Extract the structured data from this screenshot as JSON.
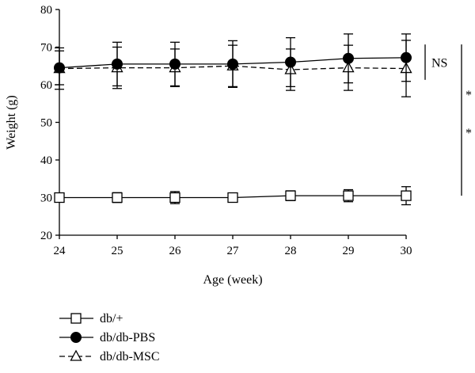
{
  "chart_data": {
    "type": "line",
    "title": "",
    "xlabel": "Age (week)",
    "ylabel": "Weight (g)",
    "x": [
      24,
      25,
      26,
      27,
      28,
      29,
      30
    ],
    "xlim": [
      24,
      30
    ],
    "ylim": [
      20,
      80
    ],
    "xticks": [
      "24",
      "25",
      "26",
      "27",
      "28",
      "29",
      "30"
    ],
    "yticks": [
      "20",
      "30",
      "40",
      "50",
      "60",
      "70",
      "80"
    ],
    "grid": false,
    "legend_position": "bottom-left",
    "series": [
      {
        "name": "db/+",
        "marker": "open-square",
        "line": "solid",
        "values": [
          30.0,
          30.0,
          30.0,
          30.0,
          30.5,
          30.5,
          30.5
        ],
        "errors": [
          0.8,
          1.3,
          1.6,
          0.5,
          1.3,
          1.6,
          2.4
        ]
      },
      {
        "name": "db/db-PBS",
        "marker": "filled-circle",
        "line": "solid",
        "values": [
          64.5,
          65.5,
          65.5,
          65.5,
          66.0,
          67.0,
          67.2
        ],
        "errors": [
          4.5,
          5.8,
          5.8,
          6.2,
          6.5,
          6.5,
          6.3
        ]
      },
      {
        "name": "db/db-MSC",
        "marker": "open-triangle",
        "line": "dashed",
        "values": [
          64.3,
          64.5,
          64.5,
          65.0,
          64.0,
          64.5,
          64.3
        ],
        "errors": [
          5.5,
          5.5,
          5.0,
          5.5,
          5.5,
          6.0,
          7.5
        ]
      }
    ],
    "annotations": [
      {
        "text": "NS",
        "between": [
          "db/db-PBS",
          "db/db-MSC"
        ]
      },
      {
        "text": "*",
        "between": [
          "db/+",
          "db/db-PBS"
        ]
      },
      {
        "text": "*",
        "between": [
          "db/+",
          "db/db-MSC"
        ]
      }
    ]
  }
}
